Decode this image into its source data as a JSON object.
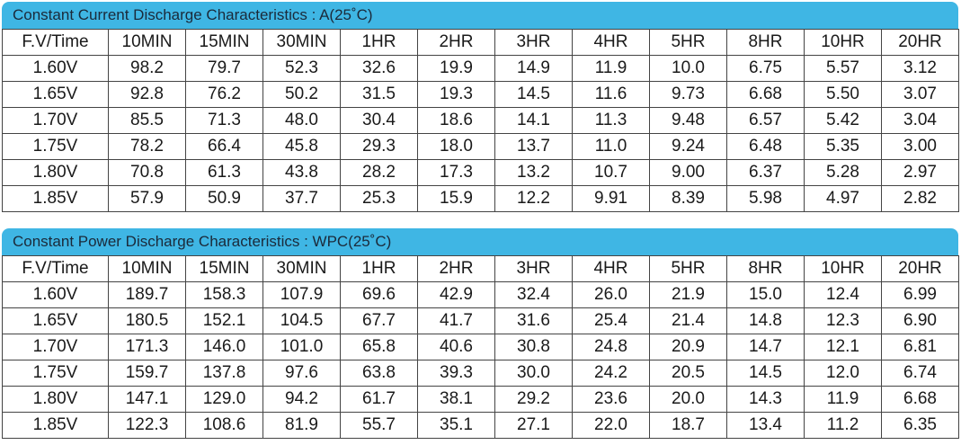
{
  "tables": [
    {
      "title": "Constant Current Discharge Characteristics : A(25˚C)",
      "headers": [
        "F.V/Time",
        "10MIN",
        "15MIN",
        "30MIN",
        "1HR",
        "2HR",
        "3HR",
        "4HR",
        "5HR",
        "8HR",
        "10HR",
        "20HR"
      ],
      "rows": [
        [
          "1.60V",
          "98.2",
          "79.7",
          "52.3",
          "32.6",
          "19.9",
          "14.9",
          "11.9",
          "10.0",
          "6.75",
          "5.57",
          "3.12"
        ],
        [
          "1.65V",
          "92.8",
          "76.2",
          "50.2",
          "31.5",
          "19.3",
          "14.5",
          "11.6",
          "9.73",
          "6.68",
          "5.50",
          "3.07"
        ],
        [
          "1.70V",
          "85.5",
          "71.3",
          "48.0",
          "30.4",
          "18.6",
          "14.1",
          "11.3",
          "9.48",
          "6.57",
          "5.42",
          "3.04"
        ],
        [
          "1.75V",
          "78.2",
          "66.4",
          "45.8",
          "29.3",
          "18.0",
          "13.7",
          "11.0",
          "9.24",
          "6.48",
          "5.35",
          "3.00"
        ],
        [
          "1.80V",
          "70.8",
          "61.3",
          "43.8",
          "28.2",
          "17.3",
          "13.2",
          "10.7",
          "9.00",
          "6.37",
          "5.28",
          "2.97"
        ],
        [
          "1.85V",
          "57.9",
          "50.9",
          "37.7",
          "25.3",
          "15.9",
          "12.2",
          "9.91",
          "8.39",
          "5.98",
          "4.97",
          "2.82"
        ]
      ]
    },
    {
      "title": "Constant Power Discharge Characteristics : WPC(25˚C)",
      "headers": [
        "F.V/Time",
        "10MIN",
        "15MIN",
        "30MIN",
        "1HR",
        "2HR",
        "3HR",
        "4HR",
        "5HR",
        "8HR",
        "10HR",
        "20HR"
      ],
      "rows": [
        [
          "1.60V",
          "189.7",
          "158.3",
          "107.9",
          "69.6",
          "42.9",
          "32.4",
          "26.0",
          "21.9",
          "15.0",
          "12.4",
          "6.99"
        ],
        [
          "1.65V",
          "180.5",
          "152.1",
          "104.5",
          "67.7",
          "41.7",
          "31.6",
          "25.4",
          "21.4",
          "14.8",
          "12.3",
          "6.90"
        ],
        [
          "1.70V",
          "171.3",
          "146.0",
          "101.0",
          "65.8",
          "40.6",
          "30.8",
          "24.8",
          "20.9",
          "14.7",
          "12.1",
          "6.81"
        ],
        [
          "1.75V",
          "159.7",
          "137.8",
          "97.6",
          "63.8",
          "39.3",
          "30.0",
          "24.2",
          "20.5",
          "14.5",
          "12.0",
          "6.74"
        ],
        [
          "1.80V",
          "147.1",
          "129.0",
          "94.2",
          "61.7",
          "38.1",
          "29.2",
          "23.6",
          "20.0",
          "14.3",
          "11.9",
          "6.68"
        ],
        [
          "1.85V",
          "122.3",
          "108.6",
          "81.9",
          "55.7",
          "35.1",
          "27.1",
          "22.0",
          "18.7",
          "13.4",
          "11.2",
          "6.35"
        ]
      ]
    }
  ]
}
